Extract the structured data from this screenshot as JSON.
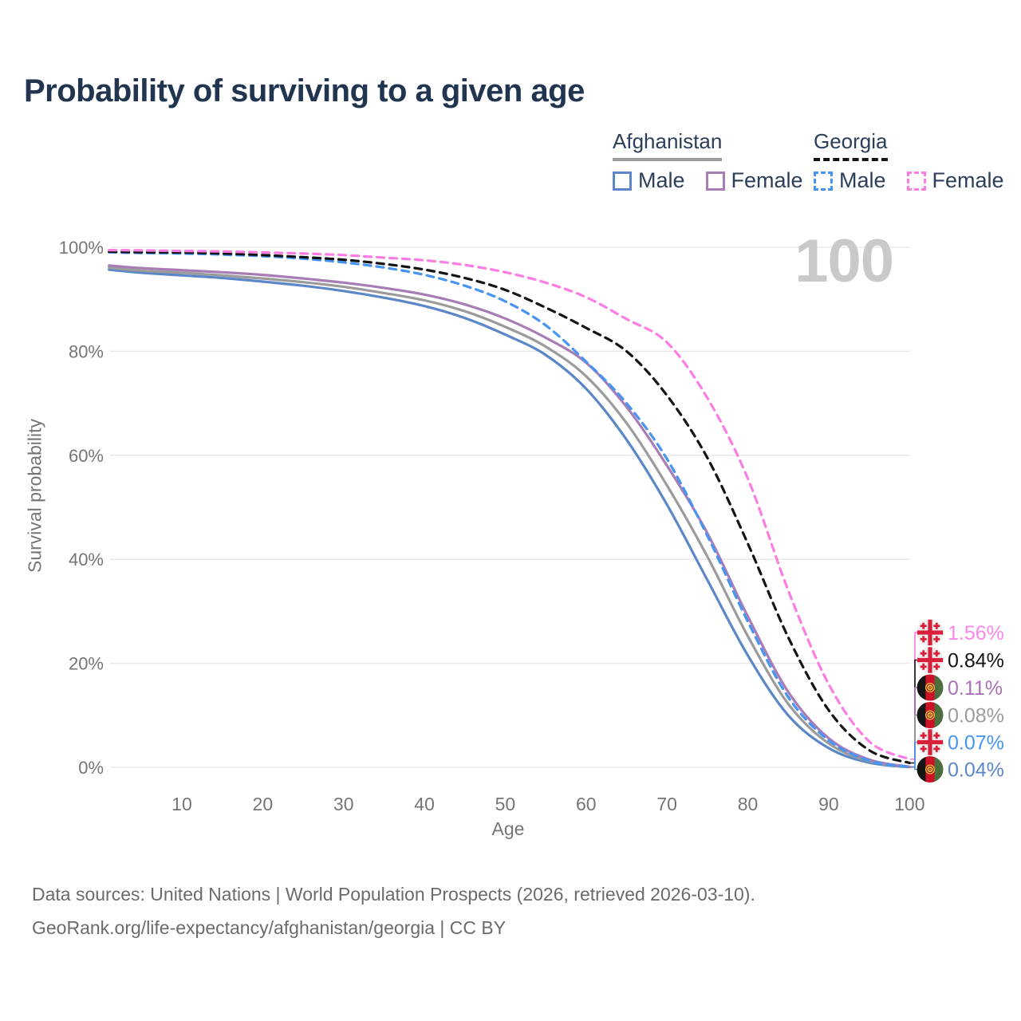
{
  "title": "Probability of surviving to a given age",
  "watermark": "100",
  "legend": {
    "groups": [
      {
        "label": "Afghanistan",
        "line_style": "solid",
        "underline_color": "#9b9b9b",
        "items": [
          {
            "label": "Male",
            "color": "#5b87c9",
            "dashed": false
          },
          {
            "label": "Female",
            "color": "#a87cb5",
            "dashed": false
          }
        ]
      },
      {
        "label": "Georgia",
        "line_style": "dashed",
        "underline_color": "#141414",
        "items": [
          {
            "label": "Male",
            "color": "#4795f3",
            "dashed": true
          },
          {
            "label": "Female",
            "color": "#fb7de4",
            "dashed": true
          }
        ]
      }
    ]
  },
  "y_axis": {
    "label": "Survival probability",
    "ticks": [
      {
        "label": "100%",
        "value": 100
      },
      {
        "label": "80%",
        "value": 80
      },
      {
        "label": "60%",
        "value": 60
      },
      {
        "label": "40%",
        "value": 40
      },
      {
        "label": "20%",
        "value": 20
      },
      {
        "label": "0%",
        "value": 0
      }
    ]
  },
  "x_axis": {
    "label": "Age",
    "ticks": [
      {
        "label": "10",
        "value": 10
      },
      {
        "label": "20",
        "value": 20
      },
      {
        "label": "30",
        "value": 30
      },
      {
        "label": "40",
        "value": 40
      },
      {
        "label": "50",
        "value": 50
      },
      {
        "label": "60",
        "value": 60
      },
      {
        "label": "70",
        "value": 70
      },
      {
        "label": "80",
        "value": 80
      },
      {
        "label": "90",
        "value": 90
      },
      {
        "label": "100",
        "value": 100
      }
    ]
  },
  "chart_data": {
    "type": "line",
    "title": "Probability of surviving to a given age",
    "xlabel": "Age",
    "ylabel": "Survival probability",
    "xlim": [
      0,
      100
    ],
    "ylim": [
      0,
      100
    ],
    "grid": "horizontal",
    "legend_position": "top-right",
    "series": [
      {
        "name": "Afghanistan Male",
        "country": "afghanistan",
        "sex": "male",
        "color": "#5b87c9",
        "dashed": false,
        "end_label": "0.04%",
        "end_label_color": "#5b87c9",
        "points": [
          [
            1,
            95.7
          ],
          [
            5,
            95.1
          ],
          [
            10,
            94.6
          ],
          [
            15,
            94.1
          ],
          [
            20,
            93.4
          ],
          [
            25,
            92.6
          ],
          [
            30,
            91.6
          ],
          [
            35,
            90.3
          ],
          [
            40,
            88.7
          ],
          [
            45,
            86.4
          ],
          [
            50,
            83.2
          ],
          [
            55,
            79.3
          ],
          [
            60,
            72.8
          ],
          [
            65,
            63.0
          ],
          [
            70,
            50.5
          ],
          [
            75,
            36.0
          ],
          [
            80,
            21.5
          ],
          [
            85,
            10.0
          ],
          [
            90,
            3.7
          ],
          [
            95,
            0.9
          ],
          [
            100,
            0.04
          ]
        ]
      },
      {
        "name": "Afghanistan (both sexes)",
        "country": "afghanistan",
        "sex": "both",
        "color": "#9b9b9b",
        "dashed": false,
        "end_label": "0.08%",
        "end_label_color": "#9b9b9b",
        "points": [
          [
            1,
            96.1
          ],
          [
            5,
            95.5
          ],
          [
            10,
            95.1
          ],
          [
            15,
            94.6
          ],
          [
            20,
            94.0
          ],
          [
            25,
            93.3
          ],
          [
            30,
            92.4
          ],
          [
            35,
            91.2
          ],
          [
            40,
            89.8
          ],
          [
            45,
            87.7
          ],
          [
            50,
            84.7
          ],
          [
            55,
            80.9
          ],
          [
            60,
            75.2
          ],
          [
            65,
            66.2
          ],
          [
            70,
            54.2
          ],
          [
            75,
            40.5
          ],
          [
            80,
            25.2
          ],
          [
            85,
            12.2
          ],
          [
            90,
            4.6
          ],
          [
            95,
            1.2
          ],
          [
            100,
            0.08
          ]
        ]
      },
      {
        "name": "Afghanistan Female",
        "country": "afghanistan",
        "sex": "female",
        "color": "#a87cb5",
        "dashed": false,
        "end_label": "0.11%",
        "end_label_color": "#ab6fb5",
        "points": [
          [
            1,
            96.5
          ],
          [
            5,
            96.0
          ],
          [
            10,
            95.6
          ],
          [
            15,
            95.2
          ],
          [
            20,
            94.7
          ],
          [
            25,
            94.0
          ],
          [
            30,
            93.2
          ],
          [
            35,
            92.2
          ],
          [
            40,
            90.9
          ],
          [
            45,
            89.0
          ],
          [
            50,
            86.3
          ],
          [
            55,
            82.6
          ],
          [
            60,
            77.8
          ],
          [
            65,
            69.3
          ],
          [
            70,
            58.0
          ],
          [
            75,
            45.0
          ],
          [
            80,
            29.0
          ],
          [
            85,
            14.5
          ],
          [
            90,
            5.6
          ],
          [
            95,
            1.5
          ],
          [
            100,
            0.11
          ]
        ]
      },
      {
        "name": "Georgia Male",
        "country": "georgia",
        "sex": "male",
        "color": "#4795f3",
        "dashed": true,
        "end_label": "0.07%",
        "end_label_color": "#4795f3",
        "points": [
          [
            1,
            99.05
          ],
          [
            5,
            98.9
          ],
          [
            10,
            98.8
          ],
          [
            15,
            98.6
          ],
          [
            20,
            98.3
          ],
          [
            25,
            97.8
          ],
          [
            30,
            97.1
          ],
          [
            35,
            96.1
          ],
          [
            40,
            94.7
          ],
          [
            45,
            92.6
          ],
          [
            50,
            89.6
          ],
          [
            55,
            85.0
          ],
          [
            60,
            78.0
          ],
          [
            65,
            70.0
          ],
          [
            70,
            59.3
          ],
          [
            75,
            44.5
          ],
          [
            80,
            28.0
          ],
          [
            85,
            13.5
          ],
          [
            90,
            5.2
          ],
          [
            95,
            1.3
          ],
          [
            100,
            0.07
          ]
        ]
      },
      {
        "name": "Georgia (both sexes)",
        "country": "georgia",
        "sex": "both",
        "color": "#141414",
        "dashed": true,
        "end_label": "0.84%",
        "end_label_color": "#141414",
        "points": [
          [
            1,
            99.15
          ],
          [
            5,
            99.05
          ],
          [
            10,
            99.0
          ],
          [
            15,
            98.8
          ],
          [
            20,
            98.5
          ],
          [
            25,
            98.1
          ],
          [
            30,
            97.6
          ],
          [
            35,
            96.8
          ],
          [
            40,
            95.7
          ],
          [
            45,
            94.1
          ],
          [
            50,
            91.8
          ],
          [
            55,
            88.4
          ],
          [
            60,
            84.5
          ],
          [
            65,
            80.0
          ],
          [
            70,
            71.5
          ],
          [
            75,
            59.5
          ],
          [
            80,
            43.0
          ],
          [
            85,
            25.0
          ],
          [
            90,
            11.0
          ],
          [
            95,
            3.3
          ],
          [
            100,
            0.84
          ]
        ]
      },
      {
        "name": "Georgia Female",
        "country": "georgia",
        "sex": "female",
        "color": "#fb7de4",
        "dashed": true,
        "end_label": "1.56%",
        "end_label_color": "#fb87ea",
        "points": [
          [
            1,
            99.45
          ],
          [
            5,
            99.4
          ],
          [
            10,
            99.3
          ],
          [
            15,
            99.2
          ],
          [
            20,
            99.0
          ],
          [
            25,
            98.8
          ],
          [
            30,
            98.5
          ],
          [
            35,
            98.0
          ],
          [
            40,
            97.5
          ],
          [
            45,
            96.6
          ],
          [
            50,
            95.2
          ],
          [
            55,
            93.2
          ],
          [
            60,
            90.4
          ],
          [
            65,
            86.2
          ],
          [
            70,
            81.7
          ],
          [
            75,
            71.0
          ],
          [
            80,
            55.5
          ],
          [
            85,
            34.0
          ],
          [
            90,
            16.0
          ],
          [
            95,
            5.0
          ],
          [
            100,
            1.56
          ]
        ]
      }
    ],
    "end_label_order": [
      "Georgia Female",
      "Georgia (both sexes)",
      "Afghanistan Female",
      "Afghanistan (both sexes)",
      "Georgia Male",
      "Afghanistan Male"
    ]
  },
  "footer": {
    "line1": "Data sources: United Nations | World Population Prospects (2026, retrieved 2026-03-10).",
    "line2": "GeoRank.org/life-expectancy/afghanistan/georgia | CC BY"
  }
}
